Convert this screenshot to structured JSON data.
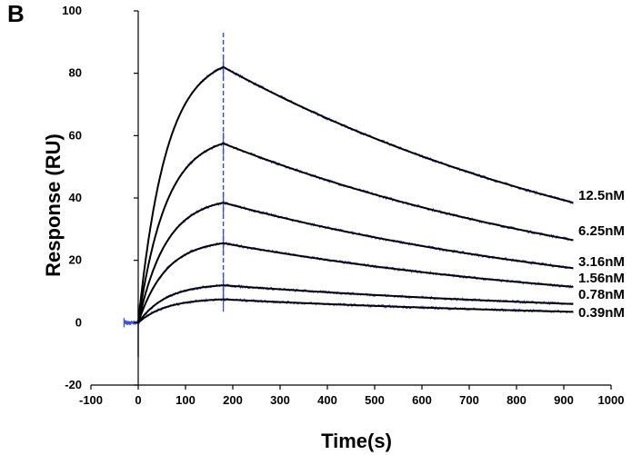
{
  "panel_label": "B",
  "chart_data": {
    "type": "line",
    "xlabel": "Time(s)",
    "ylabel": "Response (RU)",
    "xlim": [
      -100,
      1000
    ],
    "ylim": [
      -20,
      100
    ],
    "xticks": [
      -100,
      0,
      100,
      200,
      300,
      400,
      500,
      600,
      700,
      800,
      900,
      1000
    ],
    "yticks": [
      -20,
      0,
      20,
      40,
      60,
      80,
      100
    ],
    "grid": false,
    "injection_start_s": 0,
    "injection_end_s": 180,
    "baseline_start_s": -30,
    "end_s": 920,
    "series": [
      {
        "name": "12.5nM",
        "peak": 82,
        "end": 38.5
      },
      {
        "name": "6.25nM",
        "peak": 57.5,
        "end": 26.5
      },
      {
        "name": "3.16nM",
        "peak": 38.5,
        "end": 17.5
      },
      {
        "name": "1.56nM",
        "peak": 25.5,
        "end": 11.5
      },
      {
        "name": "0.78nM",
        "peak": 12,
        "end": 6
      },
      {
        "name": "0.39nM",
        "peak": 7.5,
        "end": 3.5
      }
    ],
    "colors": {
      "fit": "#000000",
      "data": "#3b4fd8",
      "axis": "#000000"
    }
  }
}
